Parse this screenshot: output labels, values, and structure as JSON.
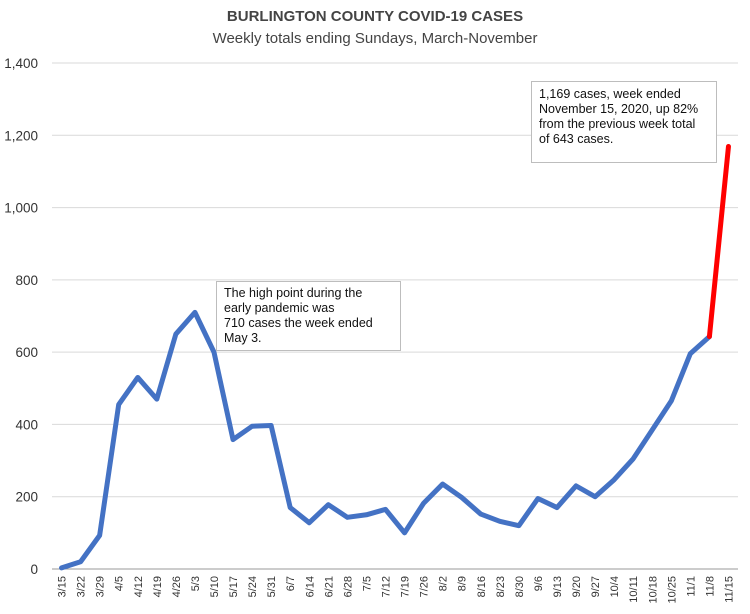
{
  "chart_data": {
    "type": "line",
    "title": "BURLINGTON COUNTY COVID-19 CASES",
    "subtitle": "Weekly totals ending Sundays, March-November",
    "xlabel": "",
    "ylabel": "",
    "ylim": [
      0,
      1400
    ],
    "yticks": [
      0,
      200,
      400,
      600,
      800,
      1000,
      1200,
      1400
    ],
    "ytick_labels": [
      "0",
      "200",
      "400",
      "600",
      "800",
      "1,000",
      "1,200",
      "1,400"
    ],
    "grid": true,
    "categories": [
      "3/15",
      "3/22",
      "3/29",
      "4/5",
      "4/12",
      "4/19",
      "4/26",
      "5/3",
      "5/10",
      "5/17",
      "5/24",
      "5/31",
      "6/7",
      "6/14",
      "6/21",
      "6/28",
      "7/5",
      "7/12",
      "7/19",
      "7/26",
      "8/2",
      "8/9",
      "8/16",
      "8/23",
      "8/30",
      "9/6",
      "9/13",
      "9/20",
      "9/27",
      "10/4",
      "10/11",
      "10/18",
      "10/25",
      "11/1",
      "11/8",
      "11/15"
    ],
    "series": [
      {
        "values": [
          3,
          20,
          93,
          455,
          530,
          470,
          650,
          710,
          600,
          358,
          395,
          397,
          170,
          128,
          178,
          143,
          150,
          165,
          100,
          182,
          235,
          198,
          152,
          132,
          120,
          195,
          170,
          230,
          200,
          247,
          305,
          385,
          465,
          596,
          643,
          1169
        ],
        "color": "#4472C4",
        "highlight_color": "#FF0000",
        "highlight_from_index": 34
      }
    ],
    "annotations": [
      {
        "lines": [
          "The high point during the",
          "early pandemic was",
          "710 cases the week ended",
          "May 3."
        ]
      },
      {
        "lines": [
          "1,169 cases, week ended",
          "November 15, 2020, up 82%",
          "from the previous week total",
          "of 643 cases."
        ]
      }
    ]
  }
}
